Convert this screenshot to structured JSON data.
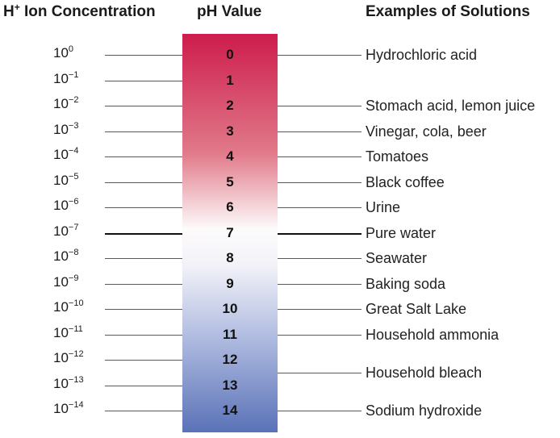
{
  "headers": {
    "concentration_main": "H",
    "concentration_sup": "+",
    "concentration_rest": " Ion Concentration",
    "ph": "pH Value",
    "examples": "Examples of Solutions"
  },
  "concentration_base": "10",
  "levels": [
    {
      "ph": "0",
      "exponent": "0",
      "example": "Hydrochloric acid"
    },
    {
      "ph": "1",
      "exponent": "−1",
      "example": null
    },
    {
      "ph": "2",
      "exponent": "−2",
      "example": "Stomach acid, lemon juice"
    },
    {
      "ph": "3",
      "exponent": "−3",
      "example": "Vinegar, cola, beer"
    },
    {
      "ph": "4",
      "exponent": "−4",
      "example": "Tomatoes"
    },
    {
      "ph": "5",
      "exponent": "−5",
      "example": "Black coffee"
    },
    {
      "ph": "6",
      "exponent": "−6",
      "example": "Urine"
    },
    {
      "ph": "7",
      "exponent": "−7",
      "example": "Pure water"
    },
    {
      "ph": "8",
      "exponent": "−8",
      "example": "Seawater"
    },
    {
      "ph": "9",
      "exponent": "−9",
      "example": "Baking soda"
    },
    {
      "ph": "10",
      "exponent": "−10",
      "example": "Great Salt Lake"
    },
    {
      "ph": "11",
      "exponent": "−11",
      "example": "Household ammonia"
    },
    {
      "ph": "12",
      "exponent": "−12",
      "example": null
    },
    {
      "ph": "13",
      "exponent": "−13",
      "example": null
    },
    {
      "ph": "14",
      "exponent": "−14",
      "example": "Sodium hydroxide"
    }
  ],
  "extra_examples": [
    {
      "between_ph": [
        "12",
        "13"
      ],
      "example": "Household bleach"
    }
  ],
  "colors": {
    "acid": "#cd1c4c",
    "neutral": "#fdfbfb",
    "base": "#5a72b7"
  }
}
